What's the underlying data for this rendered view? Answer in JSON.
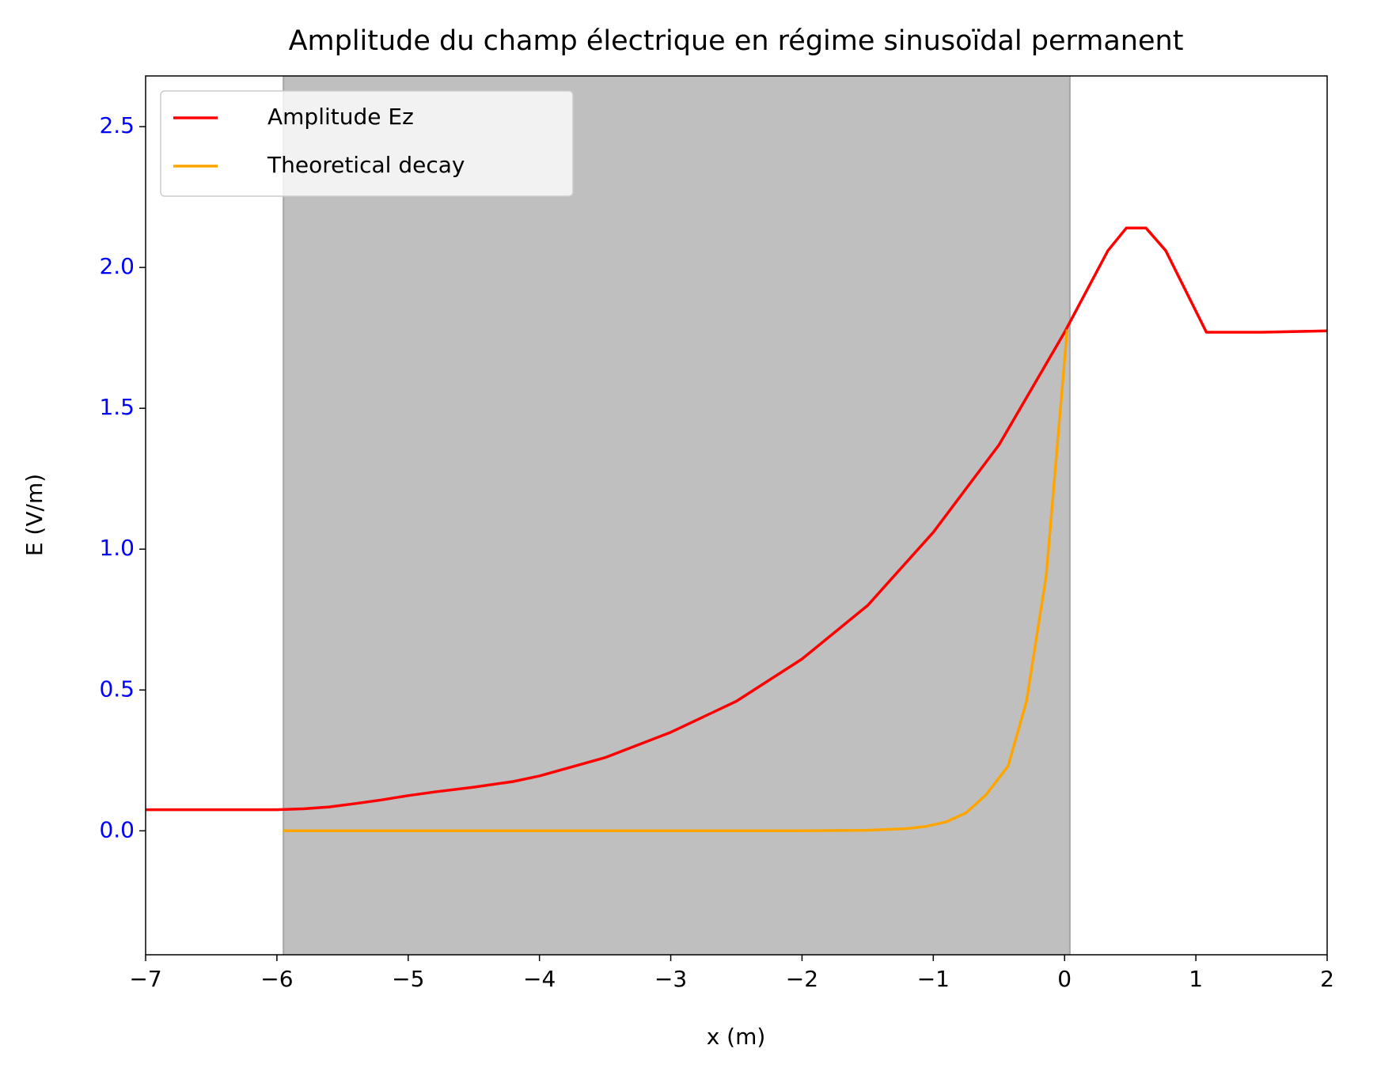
{
  "chart_data": {
    "type": "line",
    "title": "Amplitude du champ électrique en régime sinusoïdal permanent",
    "xlabel": "x (m)",
    "ylabel": "E (V/m)",
    "xlim": [
      -7,
      2
    ],
    "ylim": [
      -0.44,
      2.68
    ],
    "xticks": [
      {
        "value": -7,
        "label": "−7"
      },
      {
        "value": -6,
        "label": "−6"
      },
      {
        "value": -5,
        "label": "−5"
      },
      {
        "value": -4,
        "label": "−4"
      },
      {
        "value": -3,
        "label": "−3"
      },
      {
        "value": -2,
        "label": "−2"
      },
      {
        "value": -1,
        "label": "−1"
      },
      0,
      1,
      2
    ],
    "yticks": [
      {
        "value": 0,
        "label": "0.0"
      },
      0.5,
      {
        "value": 1,
        "label": "1.0"
      },
      1.5,
      {
        "value": 2,
        "label": "2.0"
      },
      2.5
    ],
    "ytick_color": "#0000ff",
    "shaded_span": {
      "x": [
        -5.95,
        0.04
      ],
      "color": "#bfbfbf"
    },
    "legend": "upper left",
    "series": [
      {
        "name": "Amplitude Ez",
        "color": "#ff0000",
        "x": [
          -7,
          -6,
          -5.8,
          -5.6,
          -5.4,
          -5.2,
          -5.0,
          -4.8,
          -4.5,
          -4.2,
          -4.0,
          -3.5,
          -3.0,
          -2.5,
          -2.0,
          -1.5,
          -1.0,
          -0.5,
          0.0,
          0.33,
          0.47,
          0.62,
          0.77,
          1.08,
          1.5,
          2.0
        ],
        "values": [
          0.075,
          0.075,
          0.078,
          0.085,
          0.097,
          0.11,
          0.125,
          0.138,
          0.155,
          0.175,
          0.195,
          0.26,
          0.35,
          0.46,
          0.61,
          0.8,
          1.06,
          1.37,
          1.77,
          2.06,
          2.14,
          2.14,
          2.06,
          1.77,
          1.77,
          1.775
        ]
      },
      {
        "name": "Theoretical decay",
        "color": "#ffa500",
        "x": [
          -5.95,
          -3.0,
          -2.0,
          -1.5,
          -1.2,
          -1.05,
          -0.9,
          -0.75,
          -0.6,
          -0.43,
          -0.29,
          -0.14,
          0.02
        ],
        "values": [
          0,
          0,
          0,
          0.002,
          0.008,
          0.016,
          0.032,
          0.064,
          0.127,
          0.23,
          0.46,
          0.905,
          1.78
        ]
      }
    ]
  }
}
